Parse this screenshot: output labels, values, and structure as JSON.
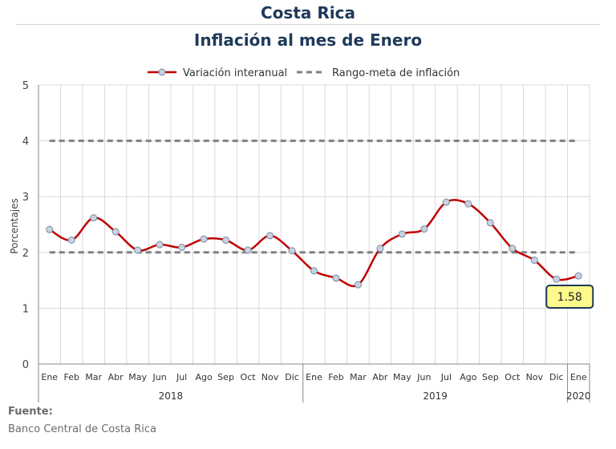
{
  "header": {
    "title": "Costa Rica",
    "subtitle": "Inflación al mes de Enero"
  },
  "source": {
    "label": "Fuente:",
    "text": "Banco Central de Costa Rica"
  },
  "colors": {
    "series": "#c00000",
    "marker_fill": "#c8d2e0",
    "marker_stroke": "#7a8aa0",
    "target": "#808080",
    "grid": "#d9d9d9",
    "callout_fill": "#fdf98a",
    "callout_stroke": "#1f3a5a"
  },
  "chart_data": {
    "type": "line",
    "ylabel": "Porcentajes",
    "ylim": [
      0,
      5
    ],
    "yticks": [
      "0",
      "1",
      "2",
      "3",
      "4",
      "5"
    ],
    "grid": true,
    "legend_position": "top",
    "legend": [
      "Variación interanual",
      "Rango-meta de inflación"
    ],
    "months": [
      "Ene",
      "Feb",
      "Mar",
      "Abr",
      "May",
      "Jun",
      "Jul",
      "Ago",
      "Sep",
      "Oct",
      "Nov",
      "Dic",
      "Ene",
      "Feb",
      "Mar",
      "Abr",
      "May",
      "Jun",
      "Jul",
      "Ago",
      "Sep",
      "Oct",
      "Nov",
      "Dic",
      "Ene"
    ],
    "years": [
      {
        "label": "2018",
        "months": 12
      },
      {
        "label": "2019",
        "months": 12
      },
      {
        "label": "2020",
        "months": 1
      }
    ],
    "series": [
      {
        "name": "Variación interanual",
        "values": [
          2.41,
          2.22,
          2.62,
          2.37,
          2.04,
          2.14,
          2.09,
          2.24,
          2.22,
          2.04,
          2.3,
          2.03,
          1.67,
          1.54,
          1.42,
          2.07,
          2.33,
          2.42,
          2.9,
          2.87,
          2.53,
          2.07,
          1.86,
          1.52,
          1.58
        ]
      },
      {
        "name": "Rango-meta de inflación",
        "values_low": 2,
        "values_high": 4
      }
    ],
    "annotation": {
      "text": "1.58",
      "point_index": 24
    }
  }
}
